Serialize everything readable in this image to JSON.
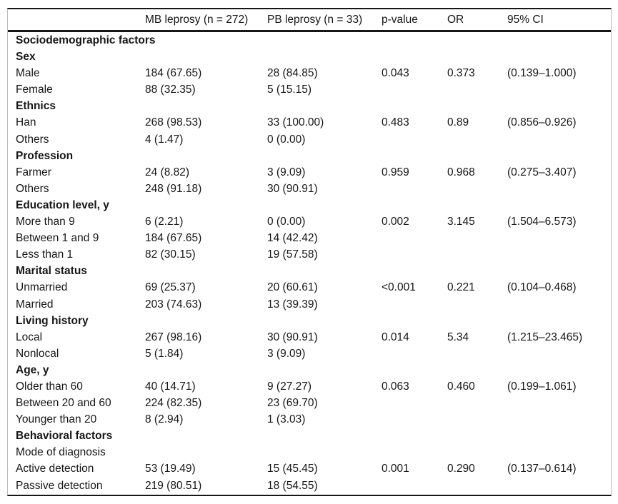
{
  "table": {
    "columns": [
      {
        "label": "MB leprosy (n = 272)"
      },
      {
        "label": "PB leprosy (n = 33)"
      },
      {
        "label": "p-value"
      },
      {
        "label": "OR"
      },
      {
        "label": "95% CI"
      }
    ],
    "rows": [
      {
        "label": "Sociodemographic factors",
        "bold": true
      },
      {
        "label": "Sex",
        "bold": true
      },
      {
        "label": "Male",
        "mb": "184 (67.65)",
        "pb": "28 (84.85)",
        "p": "0.043",
        "or": "0.373",
        "ci": "(0.139–1.000)"
      },
      {
        "label": "Female",
        "mb": "88 (32.35)",
        "pb": "5 (15.15)"
      },
      {
        "label": "Ethnics",
        "bold": true
      },
      {
        "label": "Han",
        "mb": "268 (98.53)",
        "pb": "33 (100.00)",
        "p": "0.483",
        "or": "0.89",
        "ci": "(0.856–0.926)"
      },
      {
        "label": "Others",
        "mb": "4 (1.47)",
        "pb": "0 (0.00)"
      },
      {
        "label": "Profession",
        "bold": true
      },
      {
        "label": "Farmer",
        "mb": "24 (8.82)",
        "pb": "3 (9.09)",
        "p": "0.959",
        "or": "0.968",
        "ci": "(0.275–3.407)"
      },
      {
        "label": "Others",
        "mb": "248 (91.18)",
        "pb": "30 (90.91)"
      },
      {
        "label": "Education level, y",
        "bold": true
      },
      {
        "label": "More than 9",
        "mb": "6 (2.21)",
        "pb": "0 (0.00)",
        "p": "0.002",
        "or": "3.145",
        "ci": "(1.504–6.573)"
      },
      {
        "label": "Between 1 and 9",
        "mb": "184 (67.65)",
        "pb": "14 (42.42)"
      },
      {
        "label": "Less than 1",
        "mb": "82 (30.15)",
        "pb": "19 (57.58)"
      },
      {
        "label": "Marital status",
        "bold": true
      },
      {
        "label": "Unmarried",
        "mb": "69 (25.37)",
        "pb": "20 (60.61)",
        "p": "<0.001",
        "or": "0.221",
        "ci": "(0.104–0.468)"
      },
      {
        "label": "Married",
        "mb": "203 (74.63)",
        "pb": "13 (39.39)"
      },
      {
        "label": "Living history",
        "bold": true
      },
      {
        "label": "Local",
        "mb": "267 (98.16)",
        "pb": "30 (90.91)",
        "p": "0.014",
        "or": "5.34",
        "ci": "(1.215–23.465)"
      },
      {
        "label": "Nonlocal",
        "mb": "5 (1.84)",
        "pb": "3 (9.09)"
      },
      {
        "label": "Age, y",
        "bold": true
      },
      {
        "label": "Older than 60",
        "mb": "40 (14.71)",
        "pb": "9 (27.27)",
        "p": "0.063",
        "or": "0.460",
        "ci": "(0.199–1.061)"
      },
      {
        "label": "Between 20 and 60",
        "mb": "224 (82.35)",
        "pb": "23 (69.70)"
      },
      {
        "label": "Younger than 20",
        "mb": "8 (2.94)",
        "pb": "1 (3.03)"
      },
      {
        "label": "Behavioral factors",
        "bold": true
      },
      {
        "label": "Mode of diagnosis",
        "bold": false
      },
      {
        "label": "Active detection",
        "mb": "53 (19.49)",
        "pb": "15 (45.45)",
        "p": "0.001",
        "or": "0.290",
        "ci": "(0.137–0.614)"
      },
      {
        "label": "Passive detection",
        "mb": "219 (80.51)",
        "pb": "18 (54.55)"
      }
    ]
  },
  "chart_data": {
    "type": "table",
    "columns": [
      "",
      "MB leprosy (n = 272)",
      "PB leprosy (n = 33)",
      "p-value",
      "OR",
      "95% CI"
    ]
  }
}
